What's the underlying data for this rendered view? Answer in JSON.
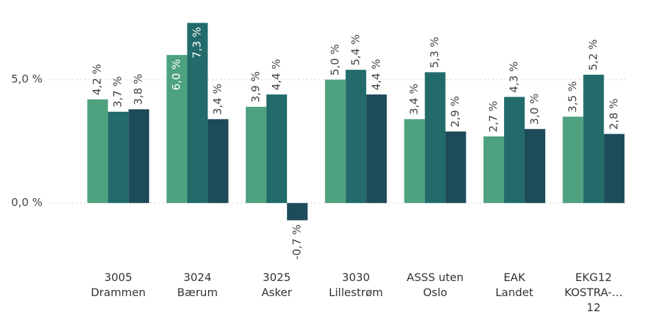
{
  "chart_data": {
    "type": "bar",
    "categories": [
      "3005\nDrammen",
      "3024\nBærum",
      "3025\nAsker",
      "3030\nLillestrøm",
      "ASSS uten\nOslo",
      "EAK\nLandet",
      "EKG12\nKOSTRA-…\n12"
    ],
    "series": [
      {
        "color": "#4ea27f",
        "values": [
          4.2,
          6.0,
          3.9,
          5.0,
          3.4,
          2.7,
          3.5
        ],
        "value_labels": [
          "4,2 %",
          "6,0 %",
          "3,9 %",
          "5,0 %",
          "3,4 %",
          "2,7 %",
          "3,5 %"
        ]
      },
      {
        "color": "#236b6b",
        "values": [
          3.7,
          7.3,
          4.4,
          5.4,
          5.3,
          4.3,
          5.2
        ],
        "value_labels": [
          "3,7 %",
          "7,3 %",
          "4,4 %",
          "5,4 %",
          "5,3 %",
          "4,3 %",
          "5,2 %"
        ]
      },
      {
        "color": "#1d4b5a",
        "values": [
          3.8,
          3.4,
          -0.7,
          4.4,
          2.9,
          3.0,
          2.8
        ],
        "value_labels": [
          "3,8 %",
          "3,4 %",
          "-0,7 %",
          "4,4 %",
          "2,9 %",
          "3,0 %",
          "2,8 %"
        ]
      }
    ],
    "ylim": [
      -2,
      7.7
    ],
    "yticks": [
      {
        "value": 0,
        "label": "0,0 %"
      },
      {
        "value": 5,
        "label": "5,0 %"
      }
    ],
    "grid": true
  }
}
